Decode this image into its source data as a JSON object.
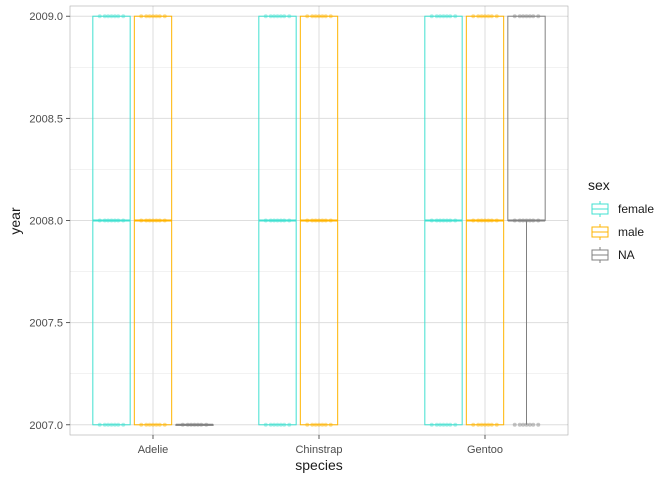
{
  "chart_data": {
    "type": "boxplot",
    "xlabel": "species",
    "ylabel": "year",
    "categories": [
      "Adelie",
      "Chinstrap",
      "Gentoo"
    ],
    "ylim": [
      2006.95,
      2009.05
    ],
    "yticks": [
      "2007.0",
      "2007.5",
      "2008.0",
      "2008.5",
      "2009.0"
    ],
    "ytick_values": [
      2007.0,
      2007.5,
      2008.0,
      2008.5,
      2009.0
    ],
    "grid": true,
    "legend": {
      "title": "sex",
      "placement": "right",
      "entries": [
        "female",
        "male",
        "NA"
      ]
    },
    "series": [
      {
        "name": "female",
        "color": "#40E0D0",
        "boxes": [
          {
            "category": "Adelie",
            "min": 2007,
            "q1": 2007,
            "median": 2008,
            "q3": 2009,
            "max": 2009
          },
          {
            "category": "Chinstrap",
            "min": 2007,
            "q1": 2007,
            "median": 2008,
            "q3": 2009,
            "max": 2009
          },
          {
            "category": "Gentoo",
            "min": 2007,
            "q1": 2007,
            "median": 2008,
            "q3": 2009,
            "max": 2009
          }
        ],
        "points": [
          {
            "category": "Adelie",
            "values": [
              2007,
              2008,
              2009
            ]
          },
          {
            "category": "Chinstrap",
            "values": [
              2007,
              2008,
              2009
            ]
          },
          {
            "category": "Gentoo",
            "values": [
              2007,
              2008,
              2009
            ]
          }
        ]
      },
      {
        "name": "male",
        "color": "#FFB400",
        "boxes": [
          {
            "category": "Adelie",
            "min": 2007,
            "q1": 2007,
            "median": 2008,
            "q3": 2009,
            "max": 2009
          },
          {
            "category": "Chinstrap",
            "min": 2007,
            "q1": 2007,
            "median": 2008,
            "q3": 2009,
            "max": 2009
          },
          {
            "category": "Gentoo",
            "min": 2007,
            "q1": 2007,
            "median": 2008,
            "q3": 2009,
            "max": 2009
          }
        ],
        "points": [
          {
            "category": "Adelie",
            "values": [
              2007,
              2008,
              2009
            ]
          },
          {
            "category": "Chinstrap",
            "values": [
              2007,
              2008,
              2009
            ]
          },
          {
            "category": "Gentoo",
            "values": [
              2007,
              2008,
              2009
            ]
          }
        ]
      },
      {
        "name": "NA",
        "color": "#808080",
        "boxes": [
          {
            "category": "Adelie",
            "min": 2007,
            "q1": 2007,
            "median": 2007,
            "q3": 2007,
            "max": 2007
          },
          {
            "category": "Gentoo",
            "min": 2007,
            "q1": 2008,
            "median": 2008,
            "q3": 2009,
            "max": 2009
          }
        ],
        "points": [
          {
            "category": "Adelie",
            "values": [
              2007
            ]
          },
          {
            "category": "Gentoo",
            "values": [
              2007,
              2008,
              2009
            ]
          }
        ]
      }
    ]
  }
}
